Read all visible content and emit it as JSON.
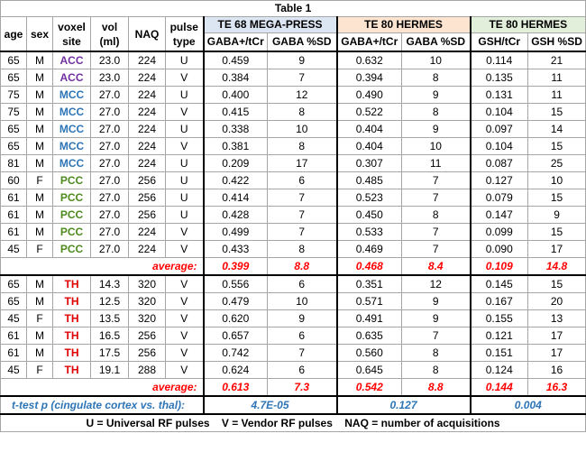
{
  "title": "Table 1",
  "group_headers": {
    "g1": "TE 68 MEGA-PRESS",
    "g2": "TE 80 HERMES",
    "g3": "TE 80 HERMES"
  },
  "col_headers": {
    "age": "age",
    "sex": "sex",
    "voxel_site": "voxel site",
    "vol": "vol (ml)",
    "naq": "NAQ",
    "pulse_type": "pulse type",
    "g1a": "GABA+/tCr",
    "g1b": "GABA %SD",
    "g2a": "GABA+/tCr",
    "g2b": "GABA %SD",
    "g3a": "GSH/tCr",
    "g3b": "GSH %SD"
  },
  "rows_cingulate": [
    {
      "age": "65",
      "sex": "M",
      "site": "ACC",
      "vol": "23.0",
      "naq": "224",
      "pulse": "U",
      "g1a": "0.459",
      "g1b": "9",
      "g2a": "0.632",
      "g2b": "10",
      "g3a": "0.114",
      "g3b": "21"
    },
    {
      "age": "65",
      "sex": "M",
      "site": "ACC",
      "vol": "23.0",
      "naq": "224",
      "pulse": "V",
      "g1a": "0.384",
      "g1b": "7",
      "g2a": "0.394",
      "g2b": "8",
      "g3a": "0.135",
      "g3b": "11"
    },
    {
      "age": "75",
      "sex": "M",
      "site": "MCC",
      "vol": "27.0",
      "naq": "224",
      "pulse": "U",
      "g1a": "0.400",
      "g1b": "12",
      "g2a": "0.490",
      "g2b": "9",
      "g3a": "0.131",
      "g3b": "11"
    },
    {
      "age": "75",
      "sex": "M",
      "site": "MCC",
      "vol": "27.0",
      "naq": "224",
      "pulse": "V",
      "g1a": "0.415",
      "g1b": "8",
      "g2a": "0.522",
      "g2b": "8",
      "g3a": "0.104",
      "g3b": "15"
    },
    {
      "age": "65",
      "sex": "M",
      "site": "MCC",
      "vol": "27.0",
      "naq": "224",
      "pulse": "U",
      "g1a": "0.338",
      "g1b": "10",
      "g2a": "0.404",
      "g2b": "9",
      "g3a": "0.097",
      "g3b": "14"
    },
    {
      "age": "65",
      "sex": "M",
      "site": "MCC",
      "vol": "27.0",
      "naq": "224",
      "pulse": "V",
      "g1a": "0.381",
      "g1b": "8",
      "g2a": "0.404",
      "g2b": "10",
      "g3a": "0.104",
      "g3b": "15"
    },
    {
      "age": "81",
      "sex": "M",
      "site": "MCC",
      "vol": "27.0",
      "naq": "224",
      "pulse": "U",
      "g1a": "0.209",
      "g1b": "17",
      "g2a": "0.307",
      "g2b": "11",
      "g3a": "0.087",
      "g3b": "25"
    },
    {
      "age": "60",
      "sex": "F",
      "site": "PCC",
      "vol": "27.0",
      "naq": "256",
      "pulse": "U",
      "g1a": "0.422",
      "g1b": "6",
      "g2a": "0.485",
      "g2b": "7",
      "g3a": "0.127",
      "g3b": "10"
    },
    {
      "age": "61",
      "sex": "M",
      "site": "PCC",
      "vol": "27.0",
      "naq": "256",
      "pulse": "U",
      "g1a": "0.414",
      "g1b": "7",
      "g2a": "0.523",
      "g2b": "7",
      "g3a": "0.079",
      "g3b": "15"
    },
    {
      "age": "61",
      "sex": "M",
      "site": "PCC",
      "vol": "27.0",
      "naq": "256",
      "pulse": "U",
      "g1a": "0.428",
      "g1b": "7",
      "g2a": "0.450",
      "g2b": "8",
      "g3a": "0.147",
      "g3b": "9"
    },
    {
      "age": "61",
      "sex": "M",
      "site": "PCC",
      "vol": "27.0",
      "naq": "224",
      "pulse": "V",
      "g1a": "0.499",
      "g1b": "7",
      "g2a": "0.533",
      "g2b": "7",
      "g3a": "0.099",
      "g3b": "15"
    },
    {
      "age": "45",
      "sex": "F",
      "site": "PCC",
      "vol": "27.0",
      "naq": "224",
      "pulse": "V",
      "g1a": "0.433",
      "g1b": "8",
      "g2a": "0.469",
      "g2b": "7",
      "g3a": "0.090",
      "g3b": "17"
    }
  ],
  "avg_cingulate": {
    "label": "average:",
    "g1a": "0.399",
    "g1b": "8.8",
    "g2a": "0.468",
    "g2b": "8.4",
    "g3a": "0.109",
    "g3b": "14.8"
  },
  "rows_thalamus": [
    {
      "age": "65",
      "sex": "M",
      "site": "TH",
      "vol": "14.3",
      "naq": "320",
      "pulse": "V",
      "g1a": "0.556",
      "g1b": "6",
      "g2a": "0.351",
      "g2b": "12",
      "g3a": "0.145",
      "g3b": "15"
    },
    {
      "age": "65",
      "sex": "M",
      "site": "TH",
      "vol": "12.5",
      "naq": "320",
      "pulse": "V",
      "g1a": "0.479",
      "g1b": "10",
      "g2a": "0.571",
      "g2b": "9",
      "g3a": "0.167",
      "g3b": "20"
    },
    {
      "age": "45",
      "sex": "F",
      "site": "TH",
      "vol": "13.5",
      "naq": "320",
      "pulse": "V",
      "g1a": "0.620",
      "g1b": "9",
      "g2a": "0.491",
      "g2b": "9",
      "g3a": "0.155",
      "g3b": "13"
    },
    {
      "age": "61",
      "sex": "M",
      "site": "TH",
      "vol": "16.5",
      "naq": "256",
      "pulse": "V",
      "g1a": "0.657",
      "g1b": "6",
      "g2a": "0.635",
      "g2b": "7",
      "g3a": "0.121",
      "g3b": "17"
    },
    {
      "age": "61",
      "sex": "M",
      "site": "TH",
      "vol": "17.5",
      "naq": "256",
      "pulse": "V",
      "g1a": "0.742",
      "g1b": "7",
      "g2a": "0.560",
      "g2b": "8",
      "g3a": "0.151",
      "g3b": "17"
    },
    {
      "age": "45",
      "sex": "F",
      "site": "TH",
      "vol": "19.1",
      "naq": "288",
      "pulse": "V",
      "g1a": "0.624",
      "g1b": "6",
      "g2a": "0.645",
      "g2b": "8",
      "g3a": "0.124",
      "g3b": "16"
    }
  ],
  "avg_thalamus": {
    "label": "average:",
    "g1a": "0.613",
    "g1b": "7.3",
    "g2a": "0.542",
    "g2b": "8.8",
    "g3a": "0.144",
    "g3b": "16.3"
  },
  "ttest": {
    "label": "t-test p (cingulate cortex vs. thal):",
    "g1": "4.7E-05",
    "g2": "0.127",
    "g3": "0.004"
  },
  "footer": "U = Universal RF pulses    V = Vendor RF pulses    NAQ = number of acquisitions",
  "colors": {
    "ACC": "#7030a0",
    "MCC": "#2e75b6",
    "PCC": "#4e8a1e",
    "TH": "#e00000",
    "average": "#ff0000",
    "ttest": "#2e75b6",
    "g1_bg": "#dce6f2",
    "g2_bg": "#fde4d0",
    "g3_bg": "#e2efda"
  }
}
